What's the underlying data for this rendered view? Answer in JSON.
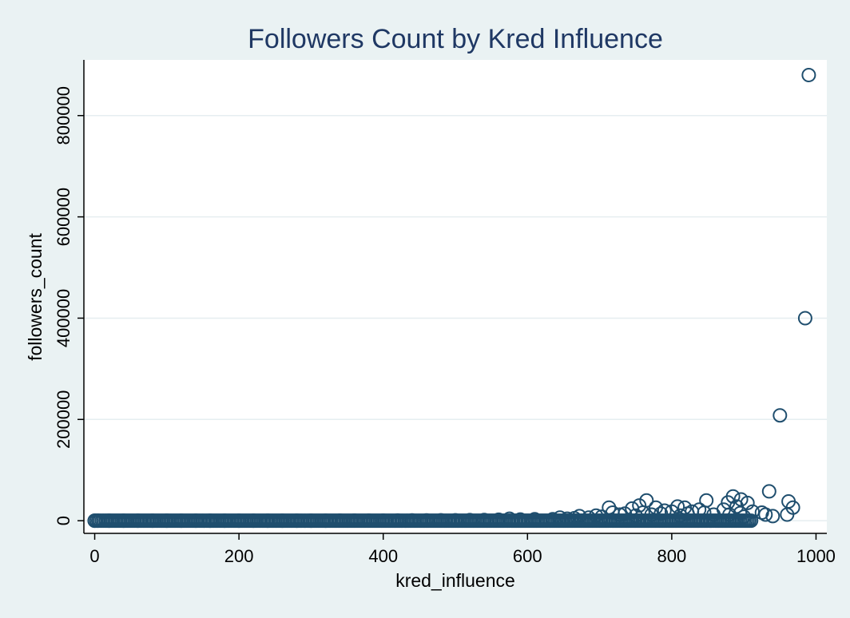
{
  "chart_data": {
    "type": "scatter",
    "title": "Followers Count by Kred Influence",
    "xlabel": "kred_influence",
    "ylabel": "followers_count",
    "xlim": [
      -15,
      1015
    ],
    "ylim": [
      -25000,
      910000
    ],
    "xticks": [
      0,
      200,
      400,
      600,
      800,
      1000
    ],
    "yticks": [
      0,
      200000,
      400000,
      600000,
      800000
    ],
    "grid": true,
    "colors": {
      "marker": "#1f4e6e",
      "grid": "#e6eef0",
      "background": "#eaf2f3",
      "plot_background": "#ffffff",
      "title": "#1f3864"
    },
    "points": [
      [
        990,
        880000
      ],
      [
        985,
        400000
      ],
      [
        950,
        208000
      ],
      [
        935,
        58000
      ],
      [
        962,
        38000
      ],
      [
        968,
        26000
      ],
      [
        960,
        12000
      ],
      [
        885,
        48000
      ],
      [
        896,
        42000
      ],
      [
        905,
        35000
      ],
      [
        878,
        36000
      ],
      [
        890,
        28000
      ],
      [
        872,
        22000
      ],
      [
        912,
        18000
      ],
      [
        925,
        16000
      ],
      [
        930,
        12000
      ],
      [
        940,
        9000
      ],
      [
        900,
        8000
      ],
      [
        880,
        12000
      ],
      [
        895,
        15000
      ],
      [
        848,
        40000
      ],
      [
        838,
        22000
      ],
      [
        818,
        26000
      ],
      [
        808,
        28000
      ],
      [
        828,
        18000
      ],
      [
        858,
        12000
      ],
      [
        845,
        16000
      ],
      [
        822,
        14000
      ],
      [
        812,
        10000
      ],
      [
        765,
        40000
      ],
      [
        755,
        30000
      ],
      [
        745,
        24000
      ],
      [
        778,
        26000
      ],
      [
        790,
        20000
      ],
      [
        800,
        18000
      ],
      [
        785,
        14000
      ],
      [
        772,
        12000
      ],
      [
        760,
        16000
      ],
      [
        750,
        10000
      ],
      [
        713,
        26000
      ],
      [
        718,
        16000
      ],
      [
        728,
        12000
      ],
      [
        735,
        14000
      ],
      [
        703,
        8000
      ],
      [
        695,
        10000
      ],
      [
        685,
        6000
      ],
      [
        672,
        9000
      ],
      [
        665,
        5000
      ],
      [
        655,
        4000
      ],
      [
        645,
        6000
      ],
      [
        635,
        3000
      ],
      [
        575,
        4000
      ],
      [
        590,
        2500
      ],
      [
        610,
        3000
      ],
      [
        560,
        2000
      ],
      [
        540,
        1500
      ],
      [
        520,
        1200
      ],
      [
        500,
        900
      ],
      [
        480,
        800
      ],
      [
        460,
        600
      ],
      [
        440,
        500
      ],
      [
        420,
        400
      ],
      [
        400,
        300
      ],
      [
        380,
        200
      ],
      [
        360,
        200
      ],
      [
        340,
        150
      ],
      [
        320,
        100
      ],
      [
        300,
        100
      ],
      [
        280,
        80
      ],
      [
        260,
        60
      ],
      [
        240,
        50
      ],
      [
        220,
        40
      ],
      [
        200,
        30
      ],
      [
        180,
        20
      ],
      [
        160,
        15
      ],
      [
        140,
        10
      ],
      [
        120,
        8
      ],
      [
        100,
        6
      ],
      [
        80,
        5
      ],
      [
        60,
        4
      ],
      [
        40,
        3
      ],
      [
        20,
        2
      ],
      [
        5,
        1
      ],
      [
        0,
        0
      ]
    ]
  }
}
